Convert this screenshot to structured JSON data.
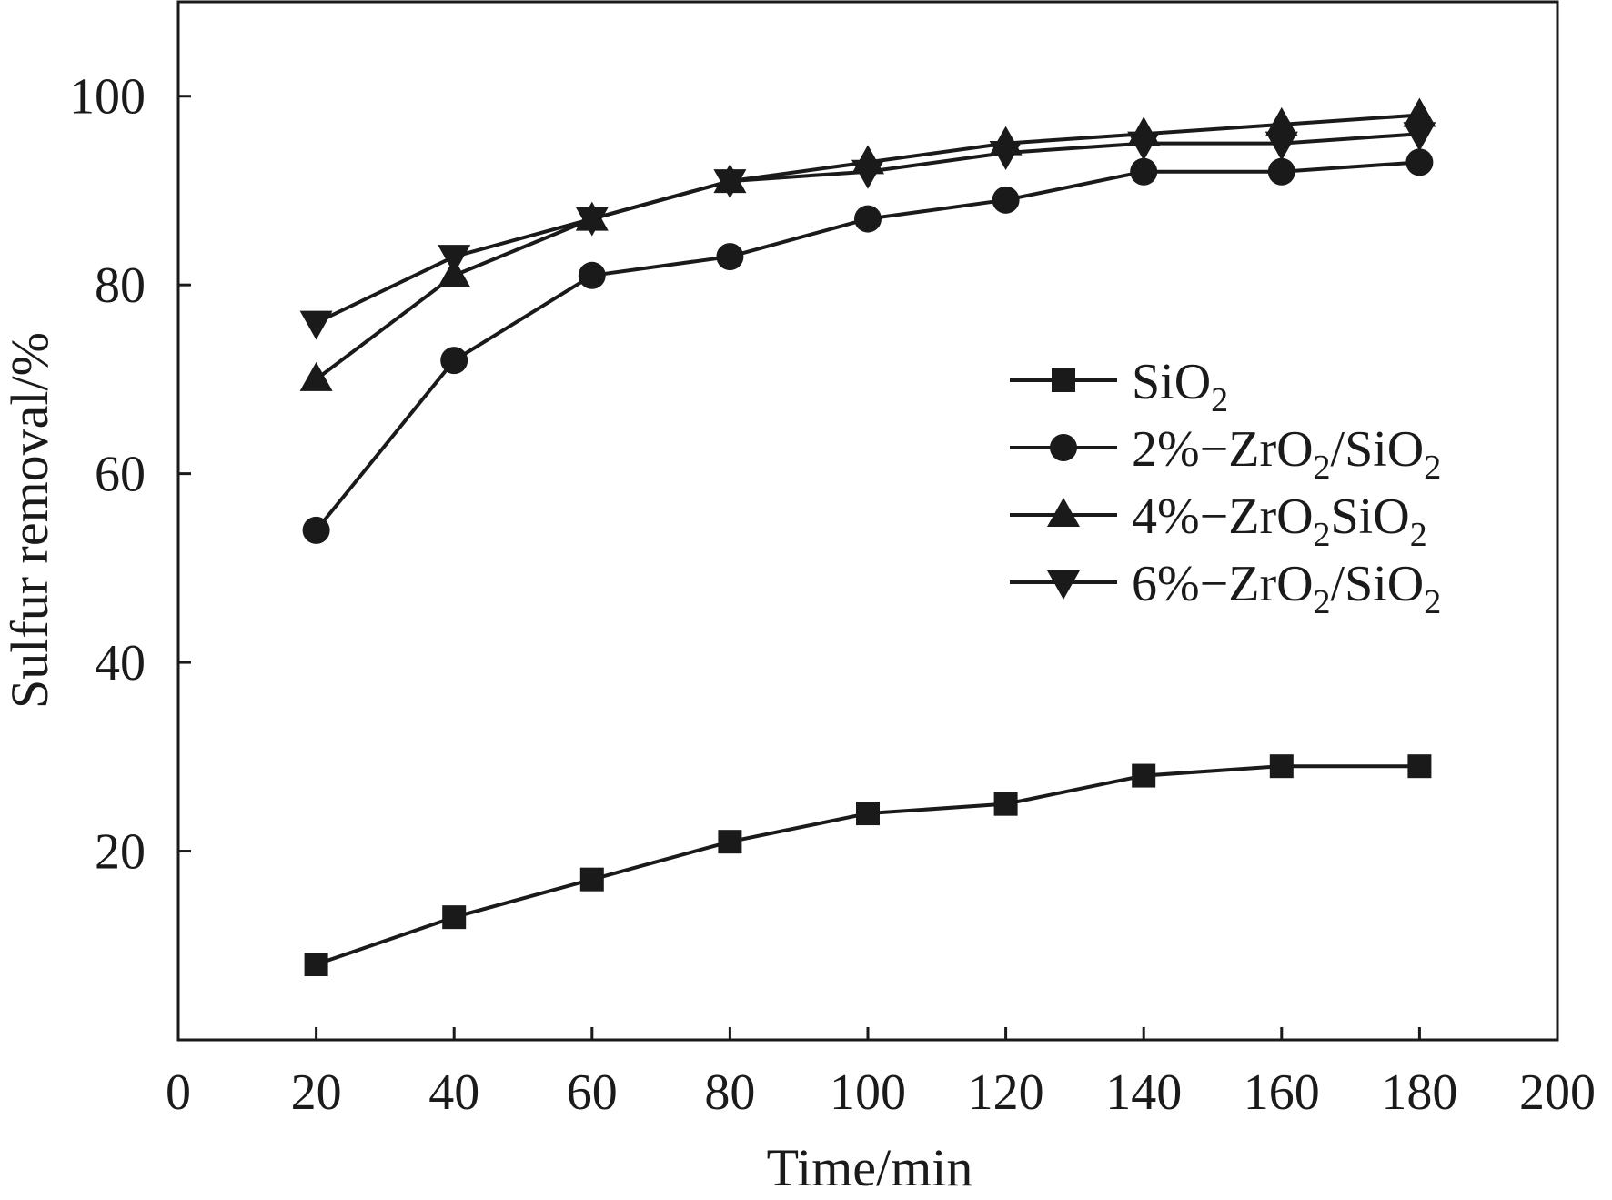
{
  "chart_data": {
    "type": "line",
    "title": "",
    "xlabel": "Time/min",
    "ylabel": "Sulfur removal/%",
    "xlim": [
      0,
      200
    ],
    "ylim": [
      0,
      110
    ],
    "xticks": [
      0,
      20,
      40,
      60,
      80,
      100,
      120,
      140,
      160,
      180,
      200
    ],
    "yticks": [
      20,
      40,
      60,
      80,
      100
    ],
    "x": [
      20,
      40,
      60,
      80,
      100,
      120,
      140,
      160,
      180
    ],
    "grid": false,
    "legend_position": "right",
    "series": [
      {
        "name": "SiO2",
        "marker": "square",
        "values": [
          8,
          13,
          17,
          21,
          24,
          25,
          28,
          29,
          29
        ]
      },
      {
        "name": "2%−ZrO2/SiO2",
        "marker": "circle",
        "values": [
          54,
          72,
          81,
          83,
          87,
          89,
          92,
          92,
          93
        ]
      },
      {
        "name": "4%−ZrO2SiO2",
        "marker": "triangle-up",
        "values": [
          70,
          81,
          87,
          91,
          93,
          95,
          96,
          97,
          98
        ]
      },
      {
        "name": "6%−ZrO2/SiO2",
        "marker": "triangle-down",
        "values": [
          76,
          83,
          87,
          91,
          92,
          94,
          95,
          95,
          96
        ]
      }
    ]
  },
  "legend": {
    "entries": [
      {
        "base": "SiO",
        "sub": "2",
        "rest": "",
        "sub2": ""
      },
      {
        "base": "2%−ZrO",
        "sub": "2",
        "rest": "/SiO",
        "sub2": "2"
      },
      {
        "base": "4%−ZrO",
        "sub": "2",
        "rest": "SiO",
        "sub2": "2"
      },
      {
        "base": "6%−ZrO",
        "sub": "2",
        "rest": "/SiO",
        "sub2": "2"
      }
    ]
  },
  "colors": {
    "ink": "#1a1a1a",
    "background": "#ffffff"
  }
}
